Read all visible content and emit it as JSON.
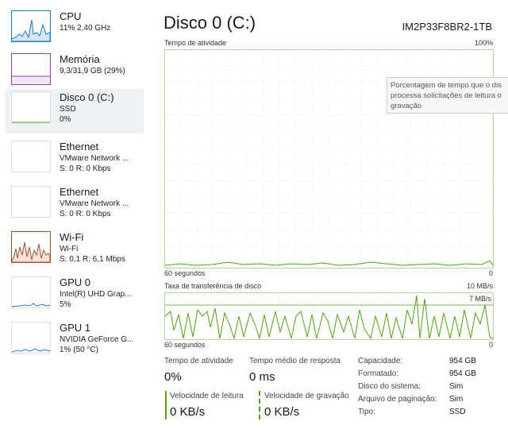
{
  "sidebar": {
    "items": [
      {
        "name": "CPU",
        "details": [
          "11% 2,40 GHz"
        ]
      },
      {
        "name": "Memória",
        "details": [
          "9,3/31,9 GB (29%)"
        ]
      },
      {
        "name": "Disco 0 (C:)",
        "details": [
          "SSD",
          "0%"
        ]
      },
      {
        "name": "Ethernet",
        "details": [
          "VMware Network ...",
          "S: 0 R: 0 Kbps"
        ]
      },
      {
        "name": "Ethernet",
        "details": [
          "VMware Network ...",
          "S: 0 R: 0 Kbps"
        ]
      },
      {
        "name": "Wi-Fi",
        "details": [
          "Wi-Fi",
          "S: 0,1 R: 6,1 Mbps"
        ]
      },
      {
        "name": "GPU 0",
        "details": [
          "Intel(R) UHD Grap...",
          "5%"
        ]
      },
      {
        "name": "GPU 1",
        "details": [
          "NVIDIA GeForce G...",
          "1% (50 °C)"
        ]
      }
    ]
  },
  "main": {
    "title": "Disco 0 (C:)",
    "model": "IM2P33F8BR2-1TB",
    "activity_chart": {
      "label": "Tempo de atividade",
      "max": "100%",
      "left": "60 segundos",
      "right": "0"
    },
    "tooltip": [
      "Porcentagem de tempo que o dis",
      "processa solicitações de leitura o",
      "gravação"
    ],
    "transfer_chart": {
      "label": "Taxa de transferência de disco",
      "max": "10 MB/s",
      "marker": "7 MB/s",
      "left": "60 segundos",
      "right": "0"
    },
    "stats": [
      {
        "label": "Tempo de atividade",
        "value": "0%"
      },
      {
        "label": "Tempo médio de resposta",
        "value": "0 ms"
      },
      {
        "label": "Velocidade de leitura",
        "value": "0 KB/s"
      },
      {
        "label": "Velocidade de gravação",
        "value": "0 KB/s"
      }
    ],
    "properties": [
      {
        "label": "Capacidade:",
        "value": "954 GB"
      },
      {
        "label": "Formatado:",
        "value": "954 GB"
      },
      {
        "label": "Disco do sistema:",
        "value": "Sim"
      },
      {
        "label": "Arquivo de paginação:",
        "value": "Sim"
      },
      {
        "label": "Tipo:",
        "value": "SSD"
      }
    ]
  }
}
